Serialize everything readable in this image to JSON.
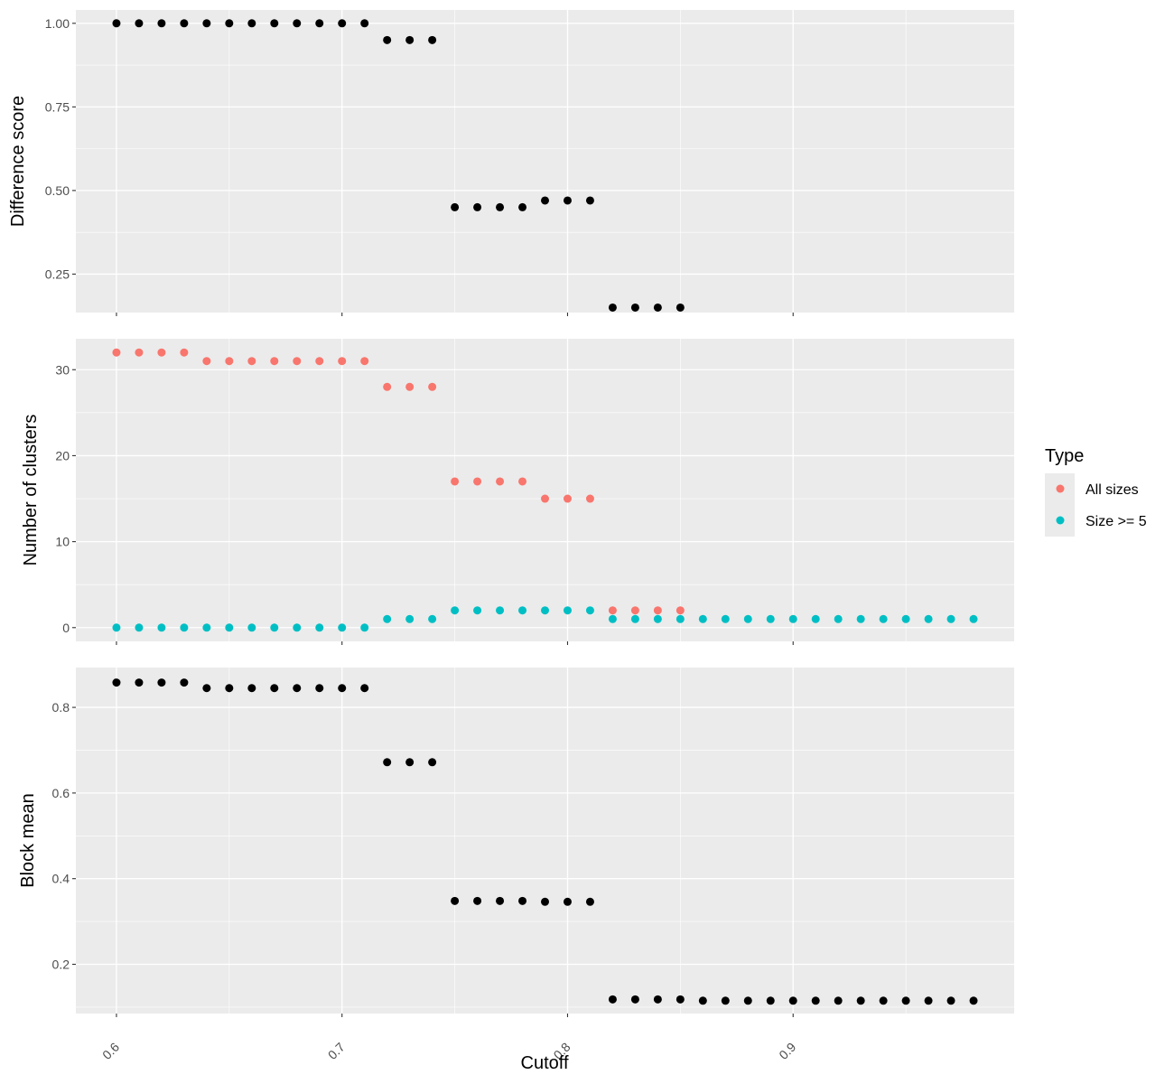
{
  "chart_data": {
    "type": "scatter",
    "x_axis": {
      "label": "Cutoff",
      "xlim": [
        0.582,
        0.998
      ],
      "ticks": [
        "0.6",
        "0.7",
        "0.8",
        "0.9"
      ],
      "tick_values": [
        0.6,
        0.7,
        0.8,
        0.9
      ],
      "grid": true
    },
    "panels": [
      {
        "ylabel": "Difference score",
        "ylim": [
          0.135,
          1.04
        ],
        "y_ticks": [
          "1.00",
          "0.75",
          "0.50",
          "0.25"
        ],
        "y_tick_values": [
          1.0,
          0.75,
          0.5,
          0.25
        ],
        "series": [
          {
            "color": "#000000",
            "x": [
              0.6,
              0.61,
              0.62,
              0.63,
              0.64,
              0.65,
              0.66,
              0.67,
              0.68,
              0.69,
              0.7,
              0.71,
              0.72,
              0.73,
              0.74,
              0.75,
              0.76,
              0.77,
              0.78,
              0.79,
              0.8,
              0.81,
              0.82,
              0.83,
              0.84,
              0.85
            ],
            "values": [
              1.0,
              1.0,
              1.0,
              1.0,
              1.0,
              1.0,
              1.0,
              1.0,
              1.0,
              1.0,
              1.0,
              1.0,
              0.95,
              0.95,
              0.95,
              0.45,
              0.45,
              0.45,
              0.45,
              0.47,
              0.47,
              0.47,
              0.15,
              0.15,
              0.15,
              0.15
            ]
          }
        ]
      },
      {
        "ylabel": "Number of clusters",
        "ylim": [
          -1.6,
          33.6
        ],
        "y_ticks": [
          "30",
          "20",
          "10",
          "0"
        ],
        "y_tick_values": [
          30,
          20,
          10,
          0
        ],
        "series": [
          {
            "name": "All sizes",
            "color": "#F8766D",
            "x": [
              0.6,
              0.61,
              0.62,
              0.63,
              0.64,
              0.65,
              0.66,
              0.67,
              0.68,
              0.69,
              0.7,
              0.71,
              0.72,
              0.73,
              0.74,
              0.75,
              0.76,
              0.77,
              0.78,
              0.79,
              0.8,
              0.81,
              0.82,
              0.83,
              0.84,
              0.85
            ],
            "values": [
              32,
              32,
              32,
              32,
              31,
              31,
              31,
              31,
              31,
              31,
              31,
              31,
              28,
              28,
              28,
              17,
              17,
              17,
              17,
              15,
              15,
              15,
              2,
              2,
              2,
              2
            ]
          },
          {
            "name": "Size >= 5",
            "color": "#00BFC4",
            "x": [
              0.6,
              0.61,
              0.62,
              0.63,
              0.64,
              0.65,
              0.66,
              0.67,
              0.68,
              0.69,
              0.7,
              0.71,
              0.72,
              0.73,
              0.74,
              0.75,
              0.76,
              0.77,
              0.78,
              0.79,
              0.8,
              0.81,
              0.82,
              0.83,
              0.84,
              0.85,
              0.86,
              0.87,
              0.88,
              0.89,
              0.9,
              0.91,
              0.92,
              0.93,
              0.94,
              0.95,
              0.96,
              0.97,
              0.98
            ],
            "values": [
              0,
              0,
              0,
              0,
              0,
              0,
              0,
              0,
              0,
              0,
              0,
              0,
              1,
              1,
              1,
              2,
              2,
              2,
              2,
              2,
              2,
              2,
              1,
              1,
              1,
              1,
              1,
              1,
              1,
              1,
              1,
              1,
              1,
              1,
              1,
              1,
              1,
              1,
              1
            ]
          }
        ]
      },
      {
        "ylabel": "Block mean",
        "ylim": [
          0.085,
          0.893
        ],
        "y_ticks": [
          "0.8",
          "0.6",
          "0.4",
          "0.2"
        ],
        "y_tick_values": [
          0.8,
          0.6,
          0.4,
          0.2
        ],
        "series": [
          {
            "color": "#000000",
            "x": [
              0.6,
              0.61,
              0.62,
              0.63,
              0.64,
              0.65,
              0.66,
              0.67,
              0.68,
              0.69,
              0.7,
              0.71,
              0.72,
              0.73,
              0.74,
              0.75,
              0.76,
              0.77,
              0.78,
              0.79,
              0.8,
              0.81,
              0.82,
              0.83,
              0.84,
              0.85,
              0.86,
              0.87,
              0.88,
              0.89,
              0.9,
              0.91,
              0.92,
              0.93,
              0.94,
              0.95,
              0.96,
              0.97,
              0.98
            ],
            "values": [
              0.858,
              0.858,
              0.858,
              0.858,
              0.845,
              0.845,
              0.845,
              0.845,
              0.845,
              0.845,
              0.845,
              0.845,
              0.672,
              0.672,
              0.672,
              0.348,
              0.348,
              0.348,
              0.348,
              0.346,
              0.346,
              0.346,
              0.118,
              0.118,
              0.118,
              0.118,
              0.115,
              0.115,
              0.115,
              0.115,
              0.115,
              0.115,
              0.115,
              0.115,
              0.115,
              0.115,
              0.115,
              0.115,
              0.115
            ]
          }
        ]
      }
    ],
    "legend": {
      "title": "Type",
      "placement": "right",
      "items": [
        {
          "label": "All sizes",
          "color": "#F8766D"
        },
        {
          "label": "Size >= 5",
          "color": "#00BFC4"
        }
      ]
    }
  }
}
